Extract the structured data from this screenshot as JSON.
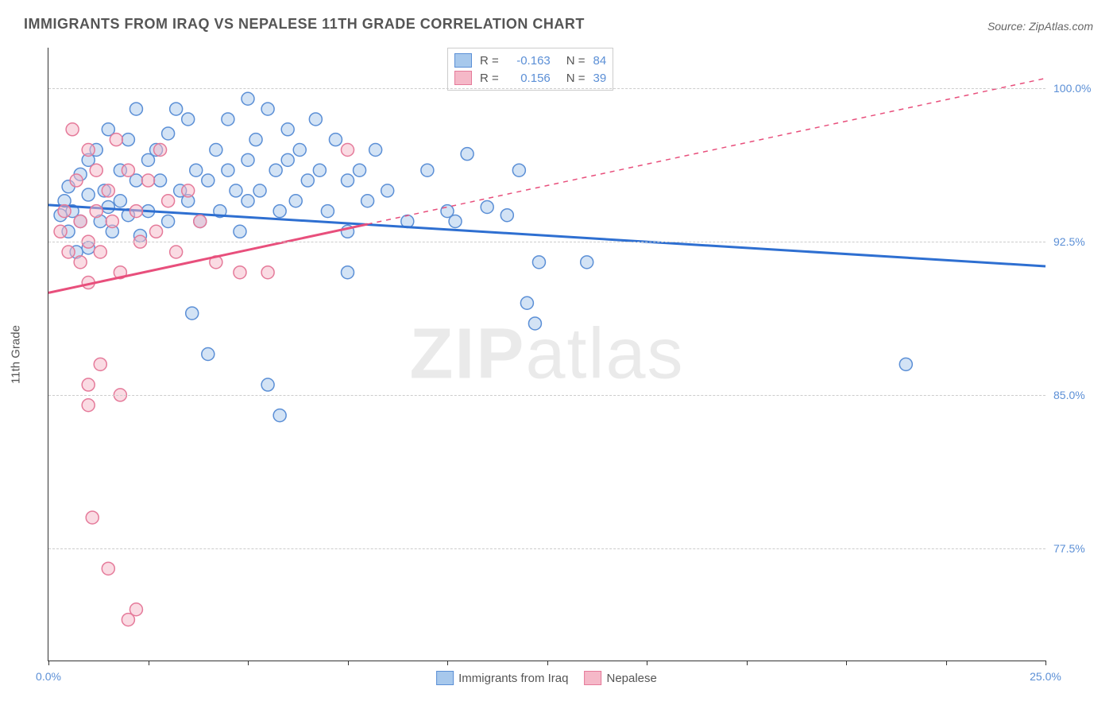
{
  "title": "IMMIGRANTS FROM IRAQ VS NEPALESE 11TH GRADE CORRELATION CHART",
  "source": "Source: ZipAtlas.com",
  "watermark_bold": "ZIP",
  "watermark_light": "atlas",
  "y_axis_title": "11th Grade",
  "chart": {
    "type": "scatter",
    "background_color": "#ffffff",
    "grid_color": "#cccccc",
    "axis_color": "#333333",
    "xlim": [
      0,
      25
    ],
    "ylim": [
      72,
      102
    ],
    "x_ticks": [
      0,
      2.5,
      5,
      7.5,
      10,
      12.5,
      15,
      17.5,
      20,
      22.5,
      25
    ],
    "x_tick_labels": {
      "0": "0.0%",
      "25": "25.0%"
    },
    "y_ticks": [
      77.5,
      85.0,
      92.5,
      100.0
    ],
    "y_tick_labels": [
      "77.5%",
      "85.0%",
      "92.5%",
      "100.0%"
    ],
    "marker_radius": 8,
    "marker_opacity": 0.5,
    "line_width": 3,
    "series": [
      {
        "name": "Immigrants from Iraq",
        "color_fill": "#a7c8ec",
        "color_stroke": "#5b8fd6",
        "line_color": "#2e6fd1",
        "R": "-0.163",
        "N": "84",
        "trend": {
          "x1": 0,
          "y1": 94.3,
          "x2": 25,
          "y2": 91.3,
          "dashed_from_x": null
        },
        "points": [
          [
            0.3,
            93.8
          ],
          [
            0.4,
            94.5
          ],
          [
            0.5,
            93.0
          ],
          [
            0.5,
            95.2
          ],
          [
            0.6,
            94.0
          ],
          [
            0.7,
            92.0
          ],
          [
            0.8,
            93.5
          ],
          [
            0.8,
            95.8
          ],
          [
            1.0,
            94.8
          ],
          [
            1.0,
            96.5
          ],
          [
            1.0,
            92.2
          ],
          [
            1.2,
            97.0
          ],
          [
            1.3,
            93.5
          ],
          [
            1.4,
            95.0
          ],
          [
            1.5,
            94.2
          ],
          [
            1.5,
            98.0
          ],
          [
            1.6,
            93.0
          ],
          [
            1.8,
            96.0
          ],
          [
            1.8,
            94.5
          ],
          [
            2.0,
            97.5
          ],
          [
            2.0,
            93.8
          ],
          [
            2.2,
            95.5
          ],
          [
            2.2,
            99.0
          ],
          [
            2.3,
            92.8
          ],
          [
            2.5,
            96.5
          ],
          [
            2.5,
            94.0
          ],
          [
            2.7,
            97.0
          ],
          [
            2.8,
            95.5
          ],
          [
            3.0,
            93.5
          ],
          [
            3.0,
            97.8
          ],
          [
            3.2,
            99.0
          ],
          [
            3.3,
            95.0
          ],
          [
            3.5,
            94.5
          ],
          [
            3.5,
            98.5
          ],
          [
            3.6,
            89.0
          ],
          [
            3.7,
            96.0
          ],
          [
            3.8,
            93.5
          ],
          [
            4.0,
            87.0
          ],
          [
            4.0,
            95.5
          ],
          [
            4.2,
            97.0
          ],
          [
            4.3,
            94.0
          ],
          [
            4.5,
            98.5
          ],
          [
            4.5,
            96.0
          ],
          [
            4.7,
            95.0
          ],
          [
            4.8,
            93.0
          ],
          [
            5.0,
            99.5
          ],
          [
            5.0,
            96.5
          ],
          [
            5.0,
            94.5
          ],
          [
            5.2,
            97.5
          ],
          [
            5.3,
            95.0
          ],
          [
            5.5,
            99.0
          ],
          [
            5.5,
            85.5
          ],
          [
            5.7,
            96.0
          ],
          [
            5.8,
            94.0
          ],
          [
            5.8,
            84.0
          ],
          [
            6.0,
            98.0
          ],
          [
            6.0,
            96.5
          ],
          [
            6.2,
            94.5
          ],
          [
            6.3,
            97.0
          ],
          [
            6.5,
            95.5
          ],
          [
            6.7,
            98.5
          ],
          [
            6.8,
            96.0
          ],
          [
            7.0,
            94.0
          ],
          [
            7.2,
            97.5
          ],
          [
            7.5,
            95.5
          ],
          [
            7.5,
            93.0
          ],
          [
            7.5,
            91.0
          ],
          [
            7.8,
            96.0
          ],
          [
            8.0,
            94.5
          ],
          [
            8.2,
            97.0
          ],
          [
            8.5,
            95.0
          ],
          [
            9.0,
            93.5
          ],
          [
            9.5,
            96.0
          ],
          [
            10.0,
            94.0
          ],
          [
            10.2,
            93.5
          ],
          [
            10.5,
            96.8
          ],
          [
            11.0,
            94.2
          ],
          [
            11.5,
            93.8
          ],
          [
            11.8,
            96.0
          ],
          [
            12.0,
            89.5
          ],
          [
            12.2,
            88.5
          ],
          [
            12.3,
            91.5
          ],
          [
            13.5,
            91.5
          ],
          [
            21.5,
            86.5
          ]
        ]
      },
      {
        "name": "Nepalese",
        "color_fill": "#f5b8c8",
        "color_stroke": "#e57a9a",
        "line_color": "#e84f7c",
        "R": "0.156",
        "N": "39",
        "trend": {
          "x1": 0,
          "y1": 90.0,
          "x2": 25,
          "y2": 100.5,
          "dashed_from_x": 8.0
        },
        "points": [
          [
            0.3,
            93.0
          ],
          [
            0.4,
            94.0
          ],
          [
            0.5,
            92.0
          ],
          [
            0.6,
            98.0
          ],
          [
            0.7,
            95.5
          ],
          [
            0.8,
            93.5
          ],
          [
            0.8,
            91.5
          ],
          [
            1.0,
            97.0
          ],
          [
            1.0,
            92.5
          ],
          [
            1.0,
            90.5
          ],
          [
            1.0,
            85.5
          ],
          [
            1.0,
            84.5
          ],
          [
            1.1,
            79.0
          ],
          [
            1.2,
            96.0
          ],
          [
            1.2,
            94.0
          ],
          [
            1.3,
            92.0
          ],
          [
            1.3,
            86.5
          ],
          [
            1.5,
            76.5
          ],
          [
            1.5,
            95.0
          ],
          [
            1.6,
            93.5
          ],
          [
            1.7,
            97.5
          ],
          [
            1.8,
            85.0
          ],
          [
            1.8,
            91.0
          ],
          [
            2.0,
            74.0
          ],
          [
            2.0,
            96.0
          ],
          [
            2.2,
            74.5
          ],
          [
            2.2,
            94.0
          ],
          [
            2.3,
            92.5
          ],
          [
            2.5,
            95.5
          ],
          [
            2.7,
            93.0
          ],
          [
            2.8,
            97.0
          ],
          [
            3.0,
            94.5
          ],
          [
            3.2,
            92.0
          ],
          [
            3.5,
            95.0
          ],
          [
            3.8,
            93.5
          ],
          [
            4.2,
            91.5
          ],
          [
            4.8,
            91.0
          ],
          [
            5.5,
            91.0
          ],
          [
            7.5,
            97.0
          ]
        ]
      }
    ]
  },
  "legend_bottom": [
    {
      "label": "Immigrants from Iraq",
      "fill": "#a7c8ec",
      "stroke": "#5b8fd6"
    },
    {
      "label": "Nepalese",
      "fill": "#f5b8c8",
      "stroke": "#e57a9a"
    }
  ]
}
